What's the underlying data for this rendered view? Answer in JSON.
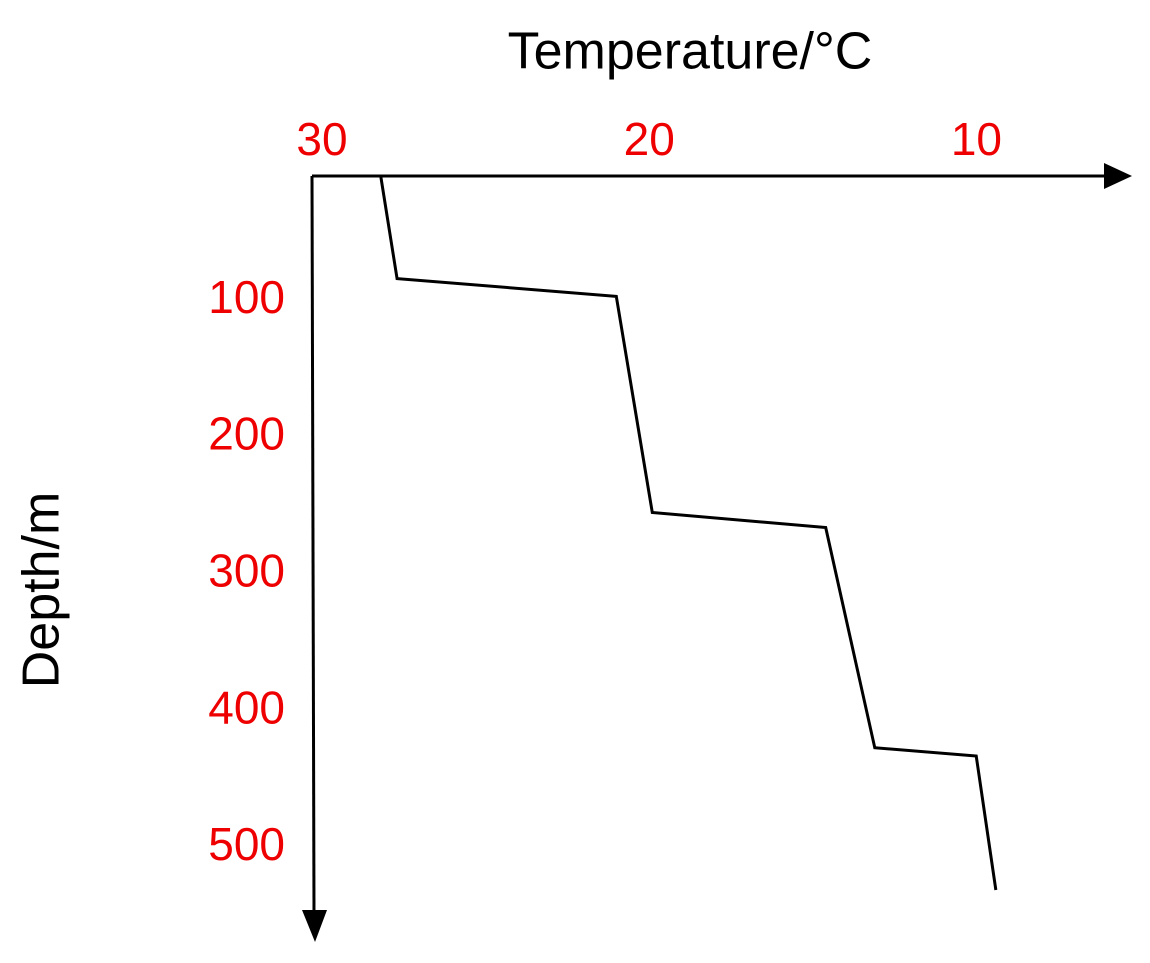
{
  "chart_data": {
    "type": "line",
    "x_label": "Temperature/°C",
    "y_label": "Depth/m",
    "x": [
      27.9,
      27.4,
      20.7,
      19.6,
      14.3,
      12.8,
      9.7,
      9.1
    ],
    "values": [
      0,
      75,
      88,
      246,
      257,
      418,
      424,
      522
    ],
    "color": "#000000",
    "tick_color": "#ee0000",
    "xlim": [
      30,
      5
    ],
    "xticks": [
      30,
      20,
      10
    ],
    "ylim": [
      0,
      560
    ],
    "yticks": [
      100,
      200,
      300,
      400,
      500
    ]
  }
}
